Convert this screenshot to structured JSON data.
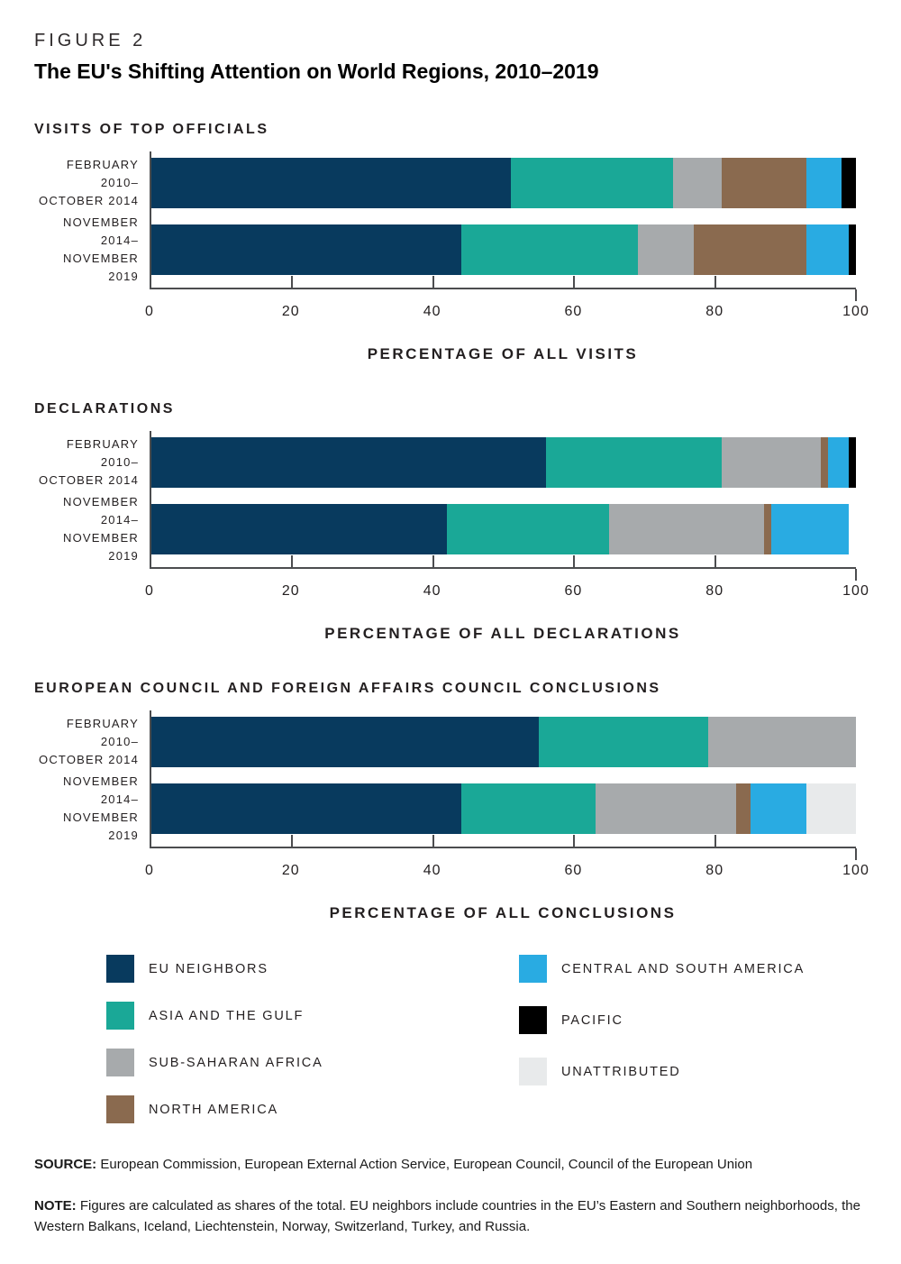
{
  "figure_label": "FIGURE 2",
  "title": "The EU's Shifting Attention on World Regions, 2010–2019",
  "legend": {
    "items": [
      {
        "key": "eu_neighbors",
        "label": "EU NEIGHBORS",
        "color": "#083a5e"
      },
      {
        "key": "asia_gulf",
        "label": "ASIA AND THE GULF",
        "color": "#1aa897"
      },
      {
        "key": "sub_saharan_africa",
        "label": "SUB-SAHARAN AFRICA",
        "color": "#a7aaac"
      },
      {
        "key": "north_america",
        "label": "NORTH AMERICA",
        "color": "#8a6a4f"
      },
      {
        "key": "central_south_america",
        "label": "CENTRAL AND SOUTH AMERICA",
        "color": "#29abe2"
      },
      {
        "key": "pacific",
        "label": "PACIFIC",
        "color": "#000000"
      },
      {
        "key": "unattributed",
        "label": "UNATTRIBUTED",
        "color": "#e8eaeb"
      }
    ]
  },
  "chart_data": [
    {
      "type": "bar",
      "stacked": true,
      "orientation": "horizontal",
      "title": "VISITS OF TOP OFFICIALS",
      "xlabel": "PERCENTAGE OF ALL VISITS",
      "xlim": [
        0,
        100
      ],
      "xticks": [
        0,
        20,
        40,
        60,
        80,
        100
      ],
      "grid": false,
      "categories": [
        "FEBRUARY 2010–OCTOBER 2014",
        "NOVEMBER 2014–NOVEMBER 2019"
      ],
      "categories_lines": [
        [
          "FEBRUARY 2010–",
          "OCTOBER 2014"
        ],
        [
          "NOVEMBER 2014–",
          "NOVEMBER 2019"
        ]
      ],
      "series": [
        {
          "name": "EU NEIGHBORS",
          "key": "eu_neighbors",
          "values": [
            51,
            44
          ]
        },
        {
          "name": "ASIA AND THE GULF",
          "key": "asia_gulf",
          "values": [
            23,
            25
          ]
        },
        {
          "name": "SUB-SAHARAN AFRICA",
          "key": "sub_saharan_africa",
          "values": [
            7,
            8
          ]
        },
        {
          "name": "NORTH AMERICA",
          "key": "north_america",
          "values": [
            12,
            16
          ]
        },
        {
          "name": "CENTRAL AND SOUTH AMERICA",
          "key": "central_south_america",
          "values": [
            5,
            6
          ]
        },
        {
          "name": "PACIFIC",
          "key": "pacific",
          "values": [
            2,
            1
          ]
        },
        {
          "name": "UNATTRIBUTED",
          "key": "unattributed",
          "values": [
            0,
            0
          ]
        }
      ]
    },
    {
      "type": "bar",
      "stacked": true,
      "orientation": "horizontal",
      "title": "DECLARATIONS",
      "xlabel": "PERCENTAGE OF ALL DECLARATIONS",
      "xlim": [
        0,
        100
      ],
      "xticks": [
        0,
        20,
        40,
        60,
        80,
        100
      ],
      "grid": false,
      "categories": [
        "FEBRUARY 2010–OCTOBER 2014",
        "NOVEMBER 2014–NOVEMBER 2019"
      ],
      "categories_lines": [
        [
          "FEBRUARY 2010–",
          "OCTOBER 2014"
        ],
        [
          "NOVEMBER 2014–",
          "NOVEMBER 2019"
        ]
      ],
      "series": [
        {
          "name": "EU NEIGHBORS",
          "key": "eu_neighbors",
          "values": [
            56,
            42
          ]
        },
        {
          "name": "ASIA AND THE GULF",
          "key": "asia_gulf",
          "values": [
            25,
            23
          ]
        },
        {
          "name": "SUB-SAHARAN AFRICA",
          "key": "sub_saharan_africa",
          "values": [
            14,
            22
          ]
        },
        {
          "name": "NORTH AMERICA",
          "key": "north_america",
          "values": [
            1,
            1
          ]
        },
        {
          "name": "CENTRAL AND SOUTH AMERICA",
          "key": "central_south_america",
          "values": [
            3,
            11
          ]
        },
        {
          "name": "PACIFIC",
          "key": "pacific",
          "values": [
            1,
            0
          ]
        },
        {
          "name": "UNATTRIBUTED",
          "key": "unattributed",
          "values": [
            0,
            0
          ]
        }
      ]
    },
    {
      "type": "bar",
      "stacked": true,
      "orientation": "horizontal",
      "title": "EUROPEAN COUNCIL AND FOREIGN AFFAIRS COUNCIL CONCLUSIONS",
      "xlabel": "PERCENTAGE OF ALL CONCLUSIONS",
      "xlim": [
        0,
        100
      ],
      "xticks": [
        0,
        20,
        40,
        60,
        80,
        100
      ],
      "grid": false,
      "categories": [
        "FEBRUARY 2010–OCTOBER 2014",
        "NOVEMBER 2014–NOVEMBER 2019"
      ],
      "categories_lines": [
        [
          "FEBRUARY 2010–",
          "OCTOBER 2014"
        ],
        [
          "NOVEMBER 2014–",
          "NOVEMBER 2019"
        ]
      ],
      "series": [
        {
          "name": "EU NEIGHBORS",
          "key": "eu_neighbors",
          "values": [
            55,
            44
          ]
        },
        {
          "name": "ASIA AND THE GULF",
          "key": "asia_gulf",
          "values": [
            24,
            19
          ]
        },
        {
          "name": "SUB-SAHARAN AFRICA",
          "key": "sub_saharan_africa",
          "values": [
            21,
            20
          ]
        },
        {
          "name": "NORTH AMERICA",
          "key": "north_america",
          "values": [
            0,
            2
          ]
        },
        {
          "name": "CENTRAL AND SOUTH AMERICA",
          "key": "central_south_america",
          "values": [
            0,
            8
          ]
        },
        {
          "name": "PACIFIC",
          "key": "pacific",
          "values": [
            0,
            0
          ]
        },
        {
          "name": "UNATTRIBUTED",
          "key": "unattributed",
          "values": [
            0,
            7
          ]
        }
      ]
    }
  ],
  "source": {
    "label": "SOURCE:",
    "text": "European Commission, European External Action Service, European Council, Council of the European Union"
  },
  "note": {
    "label": "NOTE:",
    "text": "Figures are calculated as shares of the total. EU neighbors include countries in the EU’s Eastern and Southern neighborhoods, the Western Balkans, Iceland, Liechtenstein, Norway, Switzerland, Turkey, and Russia."
  }
}
